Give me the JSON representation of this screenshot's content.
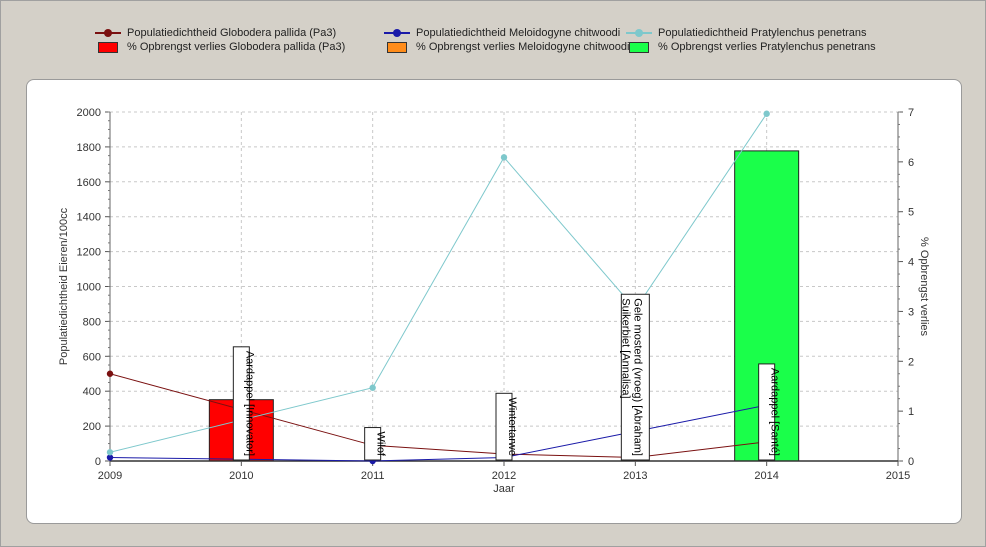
{
  "colors": {
    "background": "#d4d0c8",
    "grid": "#c8c8c8",
    "pallida": "#7a1010",
    "chitwoodi": "#1a1aa8",
    "penetrans": "#7ec8cc",
    "bar_pallida": "#ff0000",
    "bar_chitwoodi": "#ff8c1a",
    "bar_penetrans": "#1aff4a"
  },
  "legend": {
    "items": [
      {
        "label": "Populatiedichtheid Globodera pallida (Pa3)",
        "kind": "line",
        "color": "#7a1010"
      },
      {
        "label": "Populatiedichtheid Meloidogyne chitwoodi",
        "kind": "line",
        "color": "#1a1aa8"
      },
      {
        "label": "Populatiedichtheid Pratylenchus penetrans",
        "kind": "line",
        "color": "#7ec8cc"
      },
      {
        "label": "% Opbrengst verlies Globodera pallida (Pa3)",
        "kind": "box",
        "color": "#ff0000"
      },
      {
        "label": "% Opbrengst verlies Meloidogyne chitwoodi",
        "kind": "box",
        "color": "#ff8c1a"
      },
      {
        "label": "% Opbrengst verlies Pratylenchus penetrans",
        "kind": "box",
        "color": "#1aff4a"
      }
    ]
  },
  "chart_data": {
    "type": "line",
    "xlabel": "Jaar",
    "ylabel": "Populatiedichtheid Eieren/100cc",
    "y2label": "% Opbrengst verlies",
    "xlim": [
      2009,
      2015
    ],
    "ylim": [
      0,
      2000
    ],
    "y2lim": [
      0,
      7
    ],
    "xticks": [
      "2009",
      "2010",
      "2011",
      "2012",
      "2013",
      "2014",
      "2015"
    ],
    "yticks": [
      "0",
      "200",
      "400",
      "600",
      "800",
      "1000",
      "1200",
      "1400",
      "1600",
      "1800",
      "2000"
    ],
    "y2ticks": [
      "0",
      "1",
      "2",
      "3",
      "4",
      "5",
      "6",
      "7"
    ],
    "grid": true,
    "legend_position": "top",
    "series": [
      {
        "name": "Populatiedichtheid Globodera pallida (Pa3)",
        "color": "#7a1010",
        "marker": true,
        "x": [
          2009,
          2011,
          2012,
          2013,
          2014
        ],
        "y": [
          500,
          90,
          40,
          20,
          110
        ]
      },
      {
        "name": "Populatiedichtheid Meloidogyne chitwoodi",
        "color": "#1a1aa8",
        "marker": true,
        "x": [
          2009,
          2011,
          2012,
          2013,
          2014
        ],
        "y": [
          20,
          0,
          20,
          170,
          320
        ]
      },
      {
        "name": "Populatiedichtheid Pratylenchus penetrans",
        "color": "#7ec8cc",
        "marker": true,
        "x": [
          2009,
          2011,
          2012,
          2013,
          2014
        ],
        "y": [
          50,
          420,
          1740,
          870,
          1990
        ]
      }
    ],
    "bars": [
      {
        "name": "% Opbrengst verlies Globodera pallida (Pa3)",
        "x": 2010,
        "value": 1.23,
        "color": "#ff0000"
      },
      {
        "name": "% Opbrengst verlies Pratylenchus penetrans",
        "x": 2014,
        "value": 6.22,
        "color": "#1aff4a"
      }
    ],
    "crop_labels": [
      {
        "x": 2010,
        "text": "Aardappel [Innovator]"
      },
      {
        "x": 2011,
        "text": "Wilof"
      },
      {
        "x": 2012,
        "text": "Wintertarwe"
      },
      {
        "x": 2013,
        "text": "Gele mosterd (vroeg) [Abraham]\nSuikerbiet [Annalisa]"
      },
      {
        "x": 2014,
        "text": "Aardappel [Santé]"
      }
    ]
  }
}
